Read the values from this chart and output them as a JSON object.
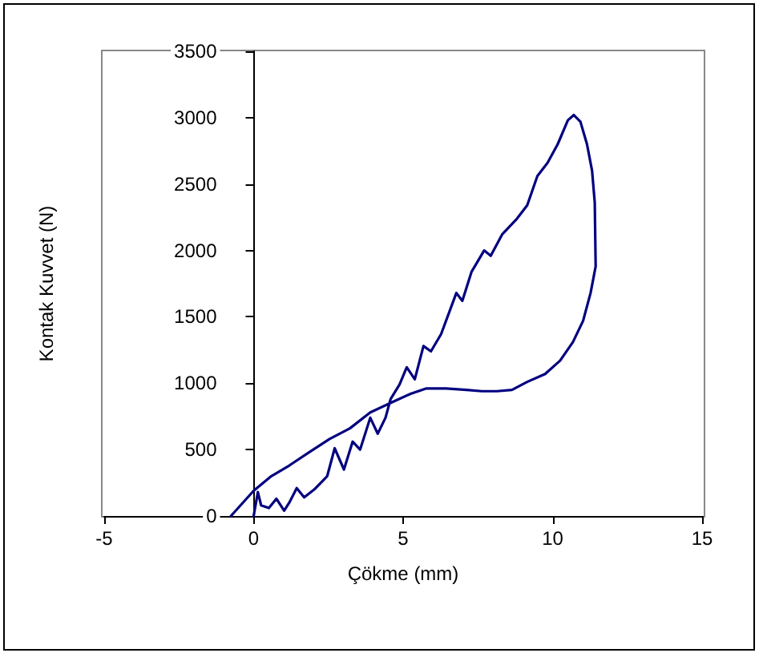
{
  "chart_data": {
    "type": "line",
    "xlabel": "Çökme (mm)",
    "ylabel": "Kontak Kuvvet (N)",
    "xlim": [
      -5,
      15
    ],
    "xticks": [
      -5,
      0,
      5,
      10,
      15
    ],
    "ylim": [
      0,
      3500
    ],
    "yticks": [
      0,
      500,
      1000,
      1500,
      2000,
      2500,
      3000,
      3500
    ],
    "grid": false,
    "marker": "none",
    "line_style": "solid",
    "series": [
      {
        "color": "#000080",
        "x": [
          0,
          0.14,
          0.25,
          0.51,
          0.76,
          1.02,
          1.19,
          1.44,
          1.69,
          2.03,
          2.46,
          2.71,
          3.02,
          3.31,
          3.56,
          3.9,
          4.15,
          4.41,
          4.58,
          4.88,
          5.12,
          5.39,
          5.68,
          5.93,
          6.27,
          6.78,
          6.98,
          7.29,
          7.71,
          7.93,
          8.31,
          8.81,
          9.15,
          9.49,
          9.83,
          10.17,
          10.51,
          10.71,
          10.93,
          11.15,
          11.32,
          11.41,
          11.44,
          11.27,
          11.02,
          10.68,
          10.25,
          9.75,
          9.15,
          8.64,
          8.14,
          7.63,
          7.12,
          6.44,
          5.76,
          5.25,
          4.66,
          3.9,
          3.22,
          2.54,
          1.86,
          1.19,
          0.59,
          0,
          -0.76
        ],
        "values": [
          0,
          180,
          80,
          60,
          130,
          40,
          100,
          210,
          140,
          200,
          300,
          510,
          350,
          560,
          500,
          740,
          620,
          740,
          880,
          990,
          1120,
          1030,
          1280,
          1240,
          1370,
          1680,
          1620,
          1840,
          2000,
          1960,
          2120,
          2240,
          2340,
          2560,
          2660,
          2800,
          2980,
          3020,
          2970,
          2800,
          2600,
          2360,
          1880,
          1680,
          1470,
          1310,
          1170,
          1070,
          1010,
          950,
          940,
          940,
          950,
          960,
          960,
          920,
          860,
          780,
          660,
          580,
          480,
          380,
          300,
          190,
          0
        ]
      }
    ]
  }
}
